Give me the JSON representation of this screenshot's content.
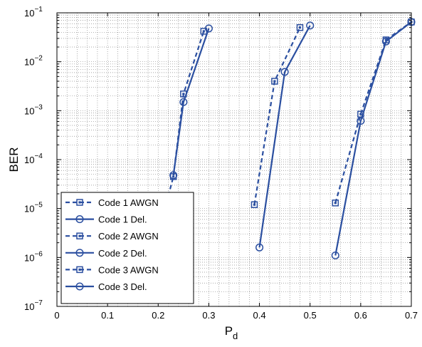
{
  "chart_data": {
    "type": "line",
    "xlabel": "P",
    "xlabel_sub": "d",
    "ylabel": "BER",
    "xlim": [
      0,
      0.7
    ],
    "ylim": [
      1e-07,
      0.1
    ],
    "yscale": "log",
    "grid": true,
    "legend_position": "bottom-left",
    "x_ticks": [
      {
        "value": 0,
        "label": "0"
      },
      {
        "value": 0.1,
        "label": "0.1"
      },
      {
        "value": 0.2,
        "label": "0.2"
      },
      {
        "value": 0.3,
        "label": "0.3"
      },
      {
        "value": 0.4,
        "label": "0.4"
      },
      {
        "value": 0.5,
        "label": "0.5"
      },
      {
        "value": 0.6,
        "label": "0.6"
      },
      {
        "value": 0.7,
        "label": "0.7"
      }
    ],
    "y_ticks": [
      {
        "value": 1e-07,
        "base": "10",
        "exp": "−7"
      },
      {
        "value": 1e-06,
        "base": "10",
        "exp": "−6"
      },
      {
        "value": 1e-05,
        "base": "10",
        "exp": "−5"
      },
      {
        "value": 0.0001,
        "base": "10",
        "exp": "−4"
      },
      {
        "value": 0.001,
        "base": "10",
        "exp": "−3"
      },
      {
        "value": 0.01,
        "base": "10",
        "exp": "−2"
      },
      {
        "value": 0.1,
        "base": "10",
        "exp": "−1"
      }
    ],
    "color": "#2b4fa0",
    "series": [
      {
        "name": "Code 1 AWGN",
        "style": "dashed",
        "marker": "square",
        "x": [
          0.22,
          0.23,
          0.25,
          0.29
        ],
        "y": [
          1.8e-05,
          4.5e-05,
          0.0022,
          0.042
        ]
      },
      {
        "name": "Code 1 Del.",
        "style": "solid",
        "marker": "circle",
        "x": [
          0.23,
          0.25,
          0.3
        ],
        "y": [
          4.8e-05,
          0.0015,
          0.048
        ]
      },
      {
        "name": "Code 2 AWGN",
        "style": "dashed",
        "marker": "square",
        "x": [
          0.39,
          0.43,
          0.48
        ],
        "y": [
          1.2e-05,
          0.004,
          0.05
        ]
      },
      {
        "name": "Code 2 Del.",
        "style": "solid",
        "marker": "circle",
        "x": [
          0.4,
          0.45,
          0.5
        ],
        "y": [
          1.6e-06,
          0.0062,
          0.055
        ]
      },
      {
        "name": "Code 3 AWGN",
        "style": "dashed",
        "marker": "square",
        "x": [
          0.55,
          0.6,
          0.65,
          0.7
        ],
        "y": [
          1.3e-05,
          0.00085,
          0.028,
          0.065
        ]
      },
      {
        "name": "Code 3 Del.",
        "style": "solid",
        "marker": "circle",
        "x": [
          0.55,
          0.6,
          0.65,
          0.7
        ],
        "y": [
          1.1e-06,
          0.00062,
          0.026,
          0.065
        ]
      }
    ]
  }
}
